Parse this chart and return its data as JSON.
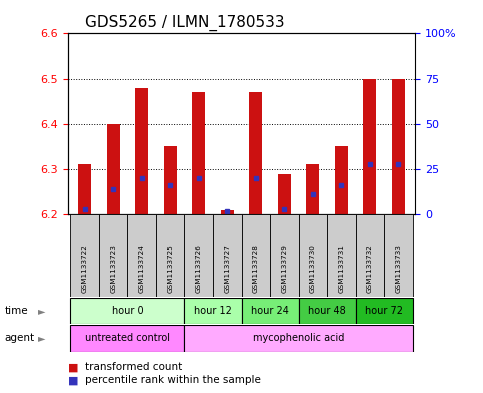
{
  "title": "GDS5265 / ILMN_1780533",
  "samples": [
    "GSM1133722",
    "GSM1133723",
    "GSM1133724",
    "GSM1133725",
    "GSM1133726",
    "GSM1133727",
    "GSM1133728",
    "GSM1133729",
    "GSM1133730",
    "GSM1133731",
    "GSM1133732",
    "GSM1133733"
  ],
  "transformed_count": [
    6.31,
    6.4,
    6.48,
    6.35,
    6.47,
    6.21,
    6.47,
    6.29,
    6.31,
    6.35,
    6.5,
    6.5
  ],
  "percentile_rank": [
    3,
    14,
    20,
    16,
    20,
    2,
    20,
    3,
    11,
    16,
    28,
    28
  ],
  "ylim": [
    6.2,
    6.6
  ],
  "yticks_left": [
    6.2,
    6.3,
    6.4,
    6.5,
    6.6
  ],
  "yticks_right_vals": [
    0,
    25,
    50,
    75,
    100
  ],
  "yticks_right_pos": [
    6.2,
    6.3,
    6.4,
    6.5,
    6.6
  ],
  "bar_color": "#cc1111",
  "blue_color": "#3333bb",
  "baseline": 6.2,
  "time_groups": [
    {
      "label": "hour 0",
      "start": 0,
      "end": 4,
      "color": "#ccffcc"
    },
    {
      "label": "hour 12",
      "start": 4,
      "end": 6,
      "color": "#aaffaa"
    },
    {
      "label": "hour 24",
      "start": 6,
      "end": 8,
      "color": "#77ee77"
    },
    {
      "label": "hour 48",
      "start": 8,
      "end": 10,
      "color": "#44cc44"
    },
    {
      "label": "hour 72",
      "start": 10,
      "end": 12,
      "color": "#22bb22"
    }
  ],
  "agent_groups": [
    {
      "label": "untreated control",
      "start": 0,
      "end": 4,
      "color": "#ff88ff"
    },
    {
      "label": "mycophenolic acid",
      "start": 4,
      "end": 12,
      "color": "#ffaaff"
    }
  ],
  "sample_bg_color": "#cccccc",
  "title_fontsize": 11,
  "tick_fontsize": 8,
  "bar_width": 0.45
}
